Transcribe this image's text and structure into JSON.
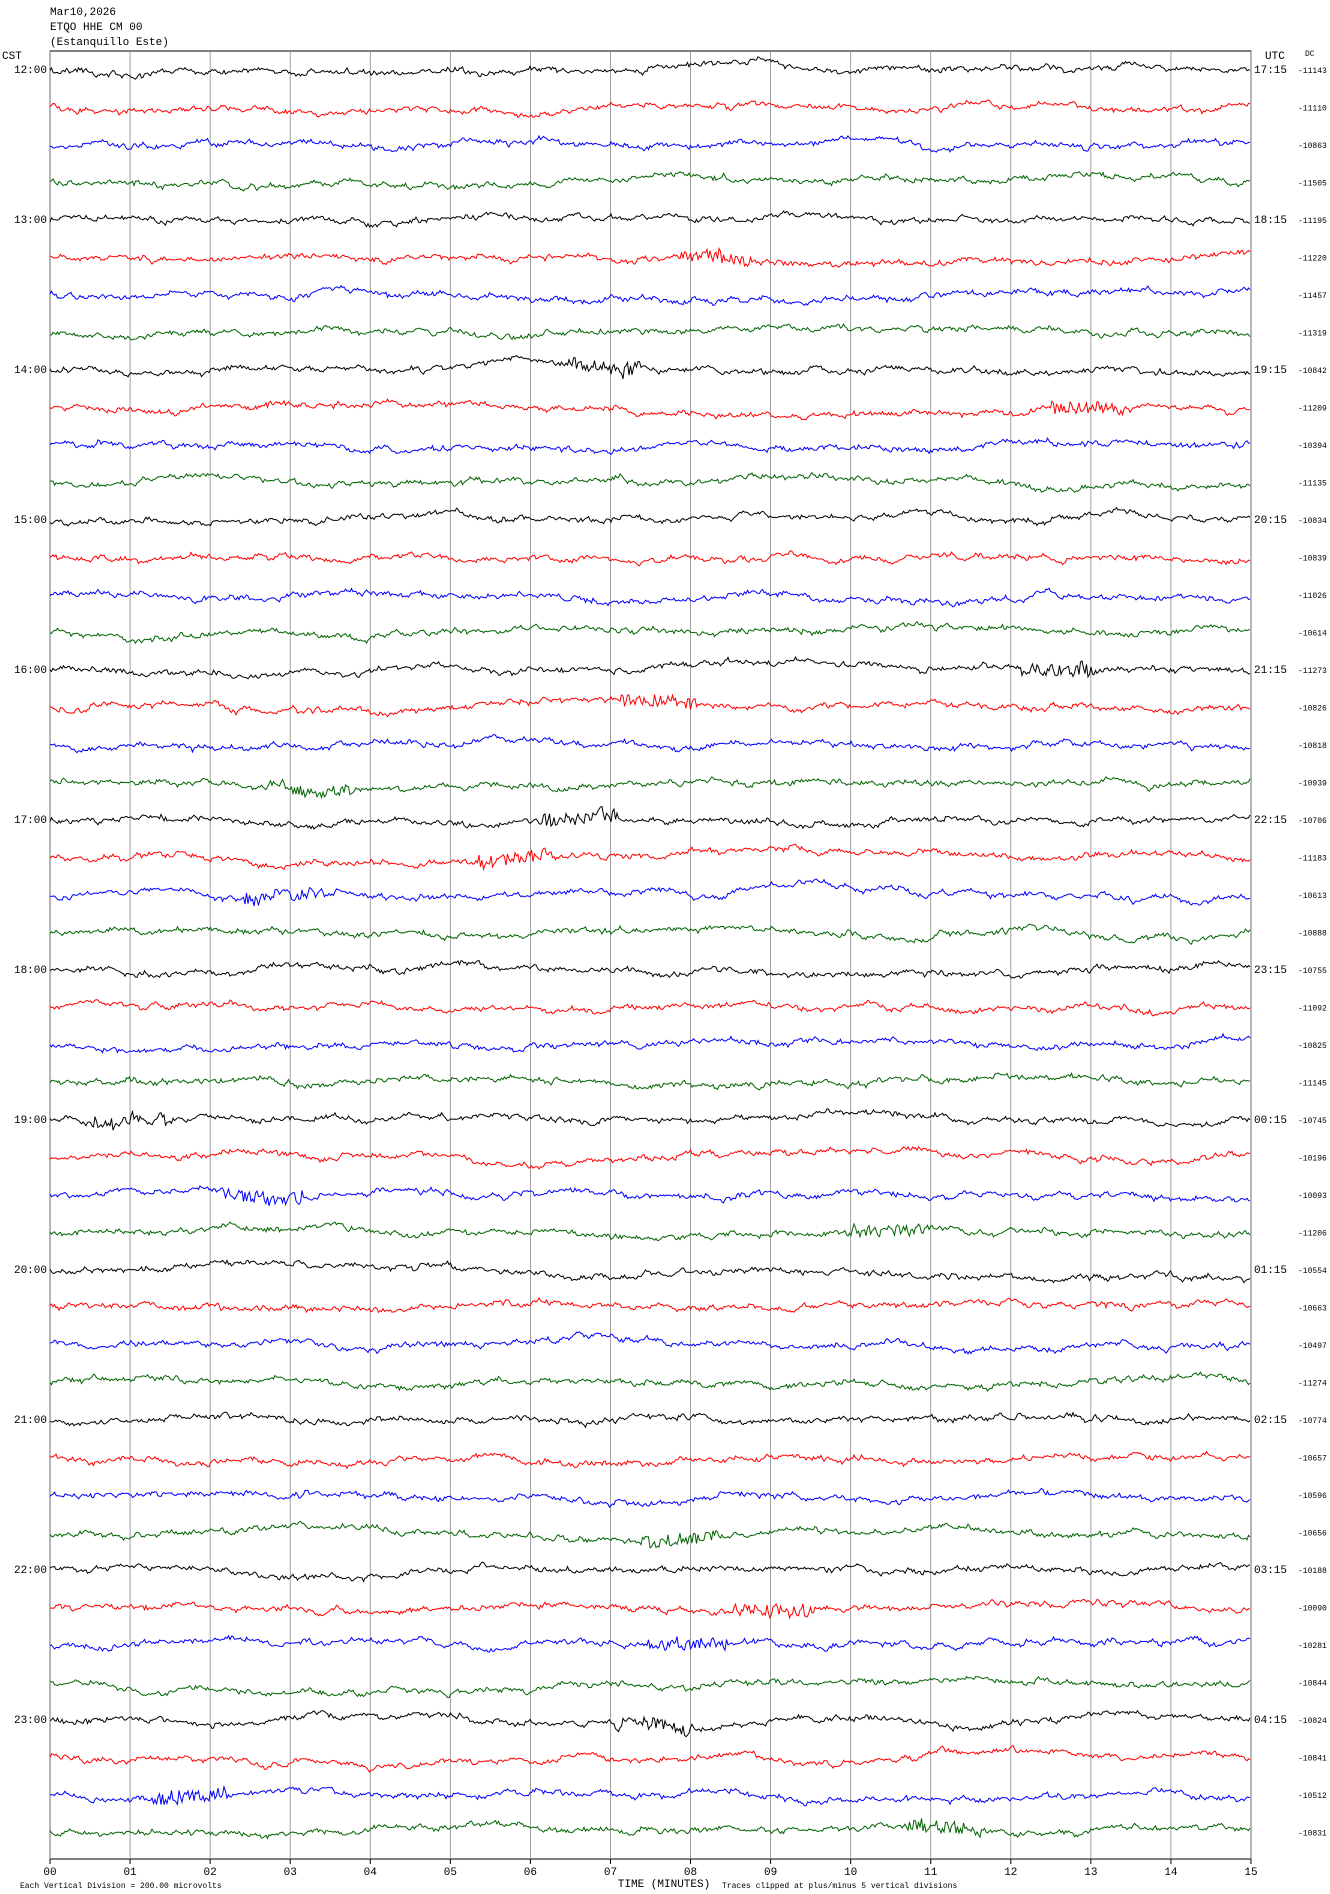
{
  "chart_data": {
    "type": "helicorder",
    "date": "Mar10,2026",
    "station": "ETQO HHE CM 00",
    "site": "(Estanquillo Este)",
    "left_zone": "CST",
    "right_zone": "UTC",
    "dc_header": "DC",
    "xlabel": "TIME (MINUTES)",
    "scale_note": "Each Vertical Division = 200.00 microvolts",
    "clip_note": "Traces clipped at plus/minus 5 vertical divisions",
    "xlim": [
      0,
      15
    ],
    "xticks": [
      {
        "value": 0,
        "label": "00"
      },
      {
        "value": 1,
        "label": "01"
      },
      {
        "value": 2,
        "label": "02"
      },
      {
        "value": 3,
        "label": "03"
      },
      {
        "value": 4,
        "label": "04"
      },
      {
        "value": 5,
        "label": "05"
      },
      {
        "value": 6,
        "label": "06"
      },
      {
        "value": 7,
        "label": "07"
      },
      {
        "value": 8,
        "label": "08"
      },
      {
        "value": 9,
        "label": "09"
      },
      10,
      11,
      12,
      13,
      14,
      15
    ],
    "grid": true,
    "colors": [
      "#000000",
      "#ff0000",
      "#0000ff",
      "#006400"
    ],
    "cst_labels": [
      "12:00",
      "13:00",
      "14:00",
      "15:00",
      "16:00",
      "17:00",
      "18:00",
      "19:00",
      "20:00",
      "21:00",
      "22:00",
      "23:00"
    ],
    "utc_labels": [
      "17:15",
      "18:15",
      "19:15",
      "20:15",
      "21:15",
      "22:15",
      "23:15",
      "00:15",
      "01:15",
      "02:15",
      "03:15",
      "04:15"
    ],
    "dc_values": [
      -11143,
      -11110,
      -10863,
      -11505,
      -11195,
      -11220,
      -11457,
      -11319,
      -10842,
      -11209,
      -10394,
      -11135,
      -10834,
      -10839,
      -11026,
      -10614,
      -11273,
      -10826,
      -10818,
      -10939,
      -10706,
      -11183,
      -10613,
      -10888,
      -10755,
      -11092,
      -10825,
      -11145,
      -10745,
      -10196,
      -10093,
      -11206,
      -10554,
      -10663,
      -10497,
      -11274,
      -10774,
      -10657,
      -10596,
      -10656,
      -10188,
      -10090,
      -10281,
      -10844,
      -10824,
      -10841,
      -10512,
      -10831
    ]
  }
}
